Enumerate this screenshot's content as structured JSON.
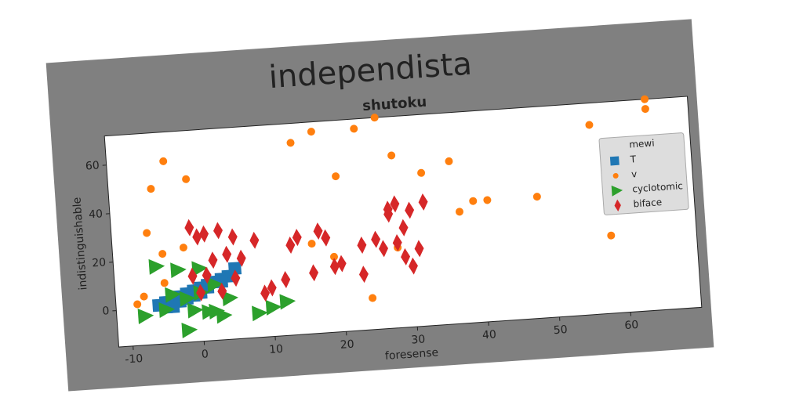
{
  "chart_data": {
    "type": "scatter",
    "title": "independista",
    "subtitle": "shutoku",
    "x_label": "foresense",
    "y_label": "indistinguishable",
    "xlim": [
      -12,
      70
    ],
    "ylim": [
      -15,
      72
    ],
    "xticks": [
      -10,
      0,
      10,
      20,
      30,
      40,
      50,
      60
    ],
    "yticks": [
      0,
      20,
      40,
      60
    ],
    "grid": false,
    "legend_title": "mewi",
    "legend": "center right",
    "series": [
      {
        "name": "T",
        "color": "#1f77b4",
        "marker": "square",
        "x": [
          -6,
          -5,
          -4,
          -3,
          -2,
          -1,
          0,
          1,
          2,
          3,
          4,
          -5,
          -3,
          -1,
          1,
          3,
          5,
          -4,
          -2,
          0
        ],
        "y": [
          1,
          2,
          3,
          4,
          5,
          6,
          7,
          8,
          9,
          10,
          11,
          0,
          2,
          4,
          7,
          9,
          14,
          0,
          3,
          5
        ]
      },
      {
        "name": "v",
        "color": "#ff7f0e",
        "marker": "circle",
        "x": [
          -9,
          -8,
          -7,
          -6,
          -5,
          -4,
          -2,
          -1,
          -5,
          1,
          14,
          17,
          19,
          20,
          23,
          24,
          26,
          28,
          30,
          32,
          36,
          37,
          39,
          41,
          48,
          56,
          58,
          64,
          64,
          16,
          28
        ],
        "y": [
          2,
          5,
          31,
          49,
          22,
          60,
          24,
          52,
          10,
          12,
          64,
          68,
          16,
          49,
          68,
          -2,
          72,
          56,
          10,
          48,
          52,
          31,
          35,
          35,
          35,
          63,
          17,
          72,
          68,
          22,
          18
        ]
      },
      {
        "name": "cyclotomic",
        "color": "#2ca02c",
        "marker": "triangle",
        "x": [
          -8,
          -5,
          -6,
          -3,
          -2,
          -1,
          0,
          1,
          2,
          3,
          4,
          -2,
          0,
          8,
          10,
          12,
          -4,
          2
        ],
        "y": [
          -3,
          -1,
          17,
          15,
          -10,
          -2,
          5,
          -3,
          8,
          -5,
          2,
          3,
          15,
          -5,
          -3,
          -1,
          5,
          -3
        ]
      },
      {
        "name": "biface",
        "color": "#d62728",
        "marker": "diamond",
        "x": [
          -1,
          0,
          1,
          3,
          5,
          8,
          1,
          0,
          2,
          4,
          6,
          9,
          10,
          12,
          13,
          14,
          16,
          17,
          18,
          19,
          20,
          23,
          23,
          25,
          26,
          27,
          28,
          28,
          29,
          30,
          30,
          31,
          32,
          3,
          -1,
          5,
          27,
          29
        ],
        "y": [
          32,
          28,
          29,
          30,
          27,
          25,
          12,
          5,
          18,
          20,
          18,
          3,
          5,
          8,
          22,
          25,
          10,
          27,
          24,
          12,
          13,
          8,
          20,
          22,
          18,
          34,
          36,
          20,
          14,
          33,
          10,
          17,
          36,
          5,
          12,
          10,
          32,
          26
        ]
      }
    ]
  }
}
